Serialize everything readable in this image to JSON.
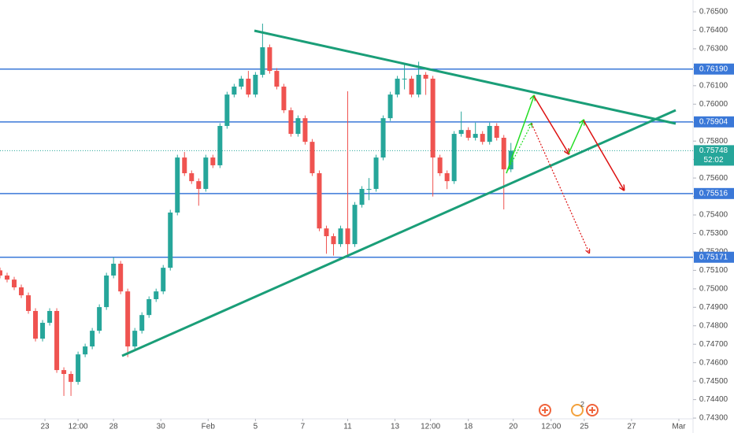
{
  "chart_data": {
    "type": "candlestick",
    "x": [
      0,
      3,
      6,
      9,
      12,
      15,
      18,
      21,
      24,
      27,
      30,
      33,
      36,
      39,
      42,
      45,
      48,
      51,
      54,
      57,
      60,
      63,
      66,
      69,
      72,
      75,
      78,
      81,
      84,
      87,
      90,
      93,
      96,
      99,
      102,
      105,
      108,
      111,
      114,
      117,
      120,
      123,
      126,
      129,
      132,
      135,
      138,
      141,
      144,
      147,
      150,
      153,
      156,
      159,
      162,
      165,
      168,
      171,
      174,
      177,
      180,
      183,
      186,
      189,
      192,
      195,
      198,
      201,
      204,
      207,
      210,
      213,
      216
    ],
    "open": [
      0.751,
      0.75072,
      0.7505,
      0.75008,
      0.74965,
      0.7488,
      0.7473,
      0.74816,
      0.7488,
      0.7456,
      0.74539,
      0.74496,
      0.74645,
      0.74688,
      0.74773,
      0.74901,
      0.75072,
      0.75136,
      0.74986,
      0.74688,
      0.74773,
      0.74858,
      0.74944,
      0.74986,
      0.75114,
      0.75413,
      0.75711,
      0.75626,
      0.75583,
      0.75541,
      0.75711,
      0.75669,
      0.75882,
      0.76052,
      0.76095,
      0.76138,
      0.76052,
      0.76159,
      0.76308,
      0.7618,
      0.76095,
      0.75967,
      0.75839,
      0.75924,
      0.75796,
      0.75626,
      0.75327,
      0.75285,
      0.75242,
      0.75327,
      0.75242,
      0.75455,
      0.75541,
      0.75541,
      0.75711,
      0.75924,
      0.76052,
      0.76138,
      0.76138,
      0.76052,
      0.76159,
      0.76138,
      0.75711,
      0.75626,
      0.75583,
      0.75839,
      0.7586,
      0.75818,
      0.75839,
      0.75796,
      0.75882,
      0.75818,
      0.75647
    ],
    "close": [
      0.75072,
      0.7505,
      0.75008,
      0.74965,
      0.7488,
      0.7473,
      0.74816,
      0.7488,
      0.7456,
      0.74539,
      0.74496,
      0.74645,
      0.74688,
      0.74773,
      0.74901,
      0.75072,
      0.75136,
      0.74986,
      0.74688,
      0.74773,
      0.74858,
      0.74944,
      0.74986,
      0.75114,
      0.75413,
      0.75711,
      0.75626,
      0.75583,
      0.75541,
      0.75711,
      0.75669,
      0.75882,
      0.76052,
      0.76095,
      0.76138,
      0.76052,
      0.76159,
      0.76308,
      0.7618,
      0.76095,
      0.75967,
      0.75839,
      0.75924,
      0.75796,
      0.75626,
      0.75327,
      0.75285,
      0.75242,
      0.75327,
      0.75242,
      0.75455,
      0.75541,
      0.75541,
      0.75711,
      0.75924,
      0.76052,
      0.76138,
      0.76138,
      0.76052,
      0.76159,
      0.76138,
      0.75711,
      0.75626,
      0.75583,
      0.75839,
      0.7586,
      0.75818,
      0.75839,
      0.75796,
      0.75882,
      0.75818,
      0.75647,
      0.75748
    ],
    "high": [
      0.75115,
      0.75087,
      0.75065,
      0.75023,
      0.7498,
      0.74895,
      0.74831,
      0.74895,
      0.74895,
      0.74575,
      0.74554,
      0.7466,
      0.74703,
      0.74788,
      0.74916,
      0.75087,
      0.7517,
      0.75151,
      0.75001,
      0.74788,
      0.74873,
      0.74959,
      0.75001,
      0.75129,
      0.75428,
      0.75726,
      0.75741,
      0.75641,
      0.75598,
      0.75726,
      0.75726,
      0.75897,
      0.76067,
      0.7611,
      0.76153,
      0.7618,
      0.76174,
      0.76436,
      0.76323,
      0.76195,
      0.7611,
      0.75982,
      0.75939,
      0.75939,
      0.75811,
      0.75641,
      0.75342,
      0.753,
      0.75342,
      0.7607,
      0.7547,
      0.75556,
      0.756,
      0.75726,
      0.75939,
      0.76067,
      0.76153,
      0.7622,
      0.76153,
      0.7623,
      0.76174,
      0.76153,
      0.75726,
      0.75641,
      0.75854,
      0.7596,
      0.75875,
      0.759,
      0.75854,
      0.759,
      0.75897,
      0.75833,
      0.7579
    ],
    "low": [
      0.75057,
      0.75035,
      0.74993,
      0.7495,
      0.74865,
      0.74715,
      0.74715,
      0.74801,
      0.74545,
      0.7442,
      0.7442,
      0.74481,
      0.7463,
      0.74673,
      0.74758,
      0.74886,
      0.75057,
      0.74971,
      0.7463,
      0.74673,
      0.74758,
      0.74843,
      0.74929,
      0.74971,
      0.75099,
      0.75398,
      0.75611,
      0.75568,
      0.7545,
      0.75526,
      0.75654,
      0.75654,
      0.75867,
      0.76037,
      0.7608,
      0.76037,
      0.76037,
      0.76144,
      0.76165,
      0.7608,
      0.75952,
      0.75824,
      0.75824,
      0.75781,
      0.75611,
      0.75312,
      0.7519,
      0.7518,
      0.75227,
      0.7518,
      0.75227,
      0.7544,
      0.7548,
      0.75526,
      0.75696,
      0.75909,
      0.76037,
      0.7608,
      0.76037,
      0.76037,
      0.7605,
      0.755,
      0.75611,
      0.7554,
      0.75568,
      0.75824,
      0.75803,
      0.75803,
      0.75781,
      0.75781,
      0.75803,
      0.7543,
      0.75632
    ],
    "up_color": "#26a69a",
    "down_color": "#ef5350",
    "xlim": [
      0,
      293
    ],
    "xticks": [
      {
        "value": 19,
        "label": "23"
      },
      {
        "value": 33,
        "label": "12:00"
      },
      {
        "value": 48,
        "label": "28"
      },
      {
        "value": 68,
        "label": "30"
      },
      {
        "value": 88,
        "label": "Feb"
      },
      {
        "value": 108,
        "label": "5"
      },
      {
        "value": 128,
        "label": "7"
      },
      {
        "value": 147,
        "label": "11"
      },
      {
        "value": 167,
        "label": "13"
      },
      {
        "value": 182,
        "label": "12:00"
      },
      {
        "value": 198,
        "label": "18"
      },
      {
        "value": 217,
        "label": "20"
      },
      {
        "value": 233,
        "label": "12:00"
      },
      {
        "value": 247,
        "label": "25"
      },
      {
        "value": 267,
        "label": "27"
      },
      {
        "value": 287,
        "label": "Mar"
      }
    ],
    "ylim": [
      0.74296,
      0.76564
    ],
    "yticks": [
      {
        "value": 0.743,
        "label": "0.74300"
      },
      {
        "value": 0.744,
        "label": "0.74400"
      },
      {
        "value": 0.745,
        "label": "0.74500"
      },
      {
        "value": 0.746,
        "label": "0.74600"
      },
      {
        "value": 0.747,
        "label": "0.74700"
      },
      {
        "value": 0.748,
        "label": "0.74800"
      },
      {
        "value": 0.749,
        "label": "0.74900"
      },
      {
        "value": 0.75,
        "label": "0.75000"
      },
      {
        "value": 0.751,
        "label": "0.75100"
      },
      {
        "value": 0.752,
        "label": "0.75200"
      },
      {
        "value": 0.753,
        "label": "0.75300"
      },
      {
        "value": 0.754,
        "label": "0.75400"
      },
      {
        "value": 0.755,
        "label": "0.75500"
      },
      {
        "value": 0.756,
        "label": "0.75600"
      },
      {
        "value": 0.757,
        "label": "0.75700"
      },
      {
        "value": 0.758,
        "label": "0.75800"
      },
      {
        "value": 0.759,
        "label": "0.75900"
      },
      {
        "value": 0.76,
        "label": "0.76000"
      },
      {
        "value": 0.761,
        "label": "0.76100"
      },
      {
        "value": 0.762,
        "label": "0.76200"
      },
      {
        "value": 0.763,
        "label": "0.76300"
      },
      {
        "value": 0.764,
        "label": "0.76400"
      },
      {
        "value": 0.765,
        "label": "0.76500"
      }
    ],
    "levels": [
      {
        "value": 0.7619,
        "label": "0.76190"
      },
      {
        "value": 0.75904,
        "label": "0.75904"
      },
      {
        "value": 0.75516,
        "label": "0.75516"
      },
      {
        "value": 0.75171,
        "label": "0.75171"
      }
    ],
    "level_color": "#3a78d8",
    "current_price": {
      "value": 0.75748,
      "label": "0.75748",
      "countdown": "52:02",
      "color": "#26a69a"
    },
    "event_badge": "2"
  }
}
